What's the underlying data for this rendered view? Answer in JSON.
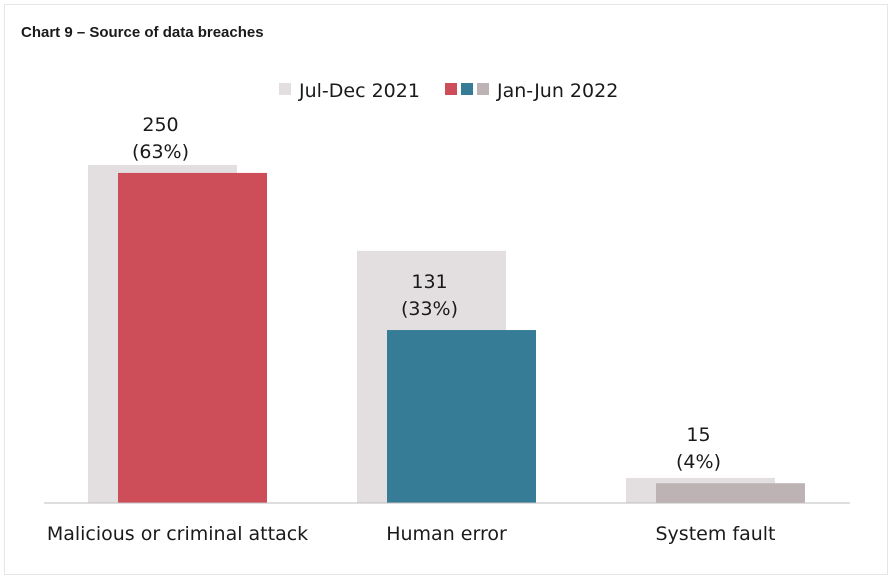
{
  "chart_data": {
    "type": "bar",
    "title": "Chart 9 – Source of data breaches",
    "categories": [
      "Malicious or criminal attack",
      "Human error",
      "System fault"
    ],
    "series": [
      {
        "name": "Jul-Dec 2021",
        "values": [
          256,
          191,
          19
        ],
        "colors": [
          "#e3dfe0",
          "#e3dfe0",
          "#e3dfe0"
        ]
      },
      {
        "name": "Jan-Jun 2022",
        "values": [
          250,
          131,
          15
        ],
        "colors": [
          "#cd4d59",
          "#367c96",
          "#bdb3b5"
        ]
      }
    ],
    "data_labels": [
      {
        "value": "250",
        "percent": "(63%)"
      },
      {
        "value": "131",
        "percent": "(33%)"
      },
      {
        "value": "15",
        "percent": "(4%)"
      }
    ],
    "ylim": [
      0,
      256
    ],
    "grid": false,
    "legend_position": "top-center",
    "xlabel": "",
    "ylabel": ""
  }
}
